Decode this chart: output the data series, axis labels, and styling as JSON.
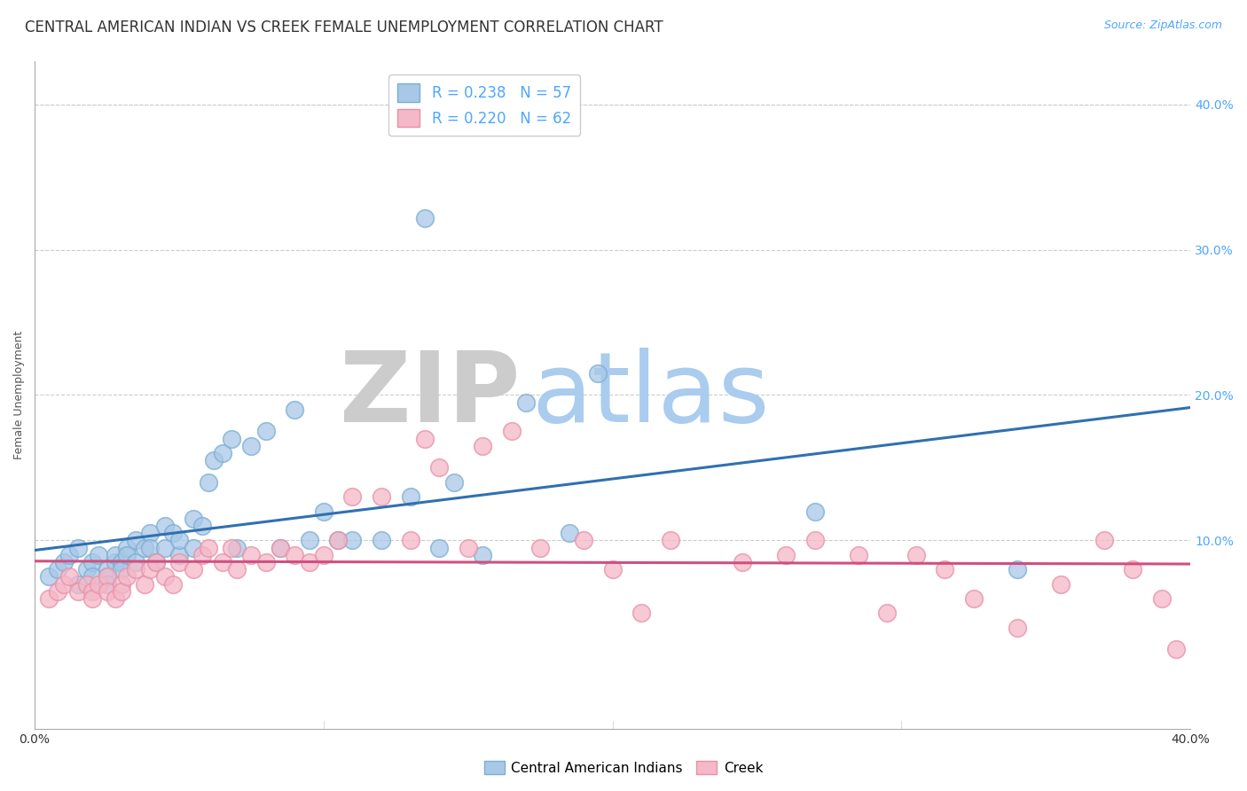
{
  "title": "CENTRAL AMERICAN INDIAN VS CREEK FEMALE UNEMPLOYMENT CORRELATION CHART",
  "source": "Source: ZipAtlas.com",
  "ylabel": "Female Unemployment",
  "right_yticks": [
    "40.0%",
    "30.0%",
    "20.0%",
    "10.0%"
  ],
  "right_ytick_vals": [
    0.4,
    0.3,
    0.2,
    0.1
  ],
  "legend_blue_r": "R = 0.238",
  "legend_blue_n": "N = 57",
  "legend_pink_r": "R = 0.220",
  "legend_pink_n": "N = 62",
  "legend_label_blue": "Central American Indians",
  "legend_label_pink": "Creek",
  "blue_color": "#a8c8e8",
  "pink_color": "#f4b8c8",
  "blue_edge": "#7aaed0",
  "pink_edge": "#e890a8",
  "trendline_blue": "#3070b0",
  "trendline_pink": "#d05080",
  "watermark_zip": "ZIP",
  "watermark_atlas": "atlas",
  "watermark_color_zip": "#cccccc",
  "watermark_color_atlas": "#aaccee",
  "blue_scatter_x": [
    0.005,
    0.008,
    0.01,
    0.012,
    0.015,
    0.015,
    0.018,
    0.02,
    0.02,
    0.022,
    0.025,
    0.025,
    0.025,
    0.028,
    0.028,
    0.03,
    0.03,
    0.032,
    0.032,
    0.035,
    0.035,
    0.038,
    0.04,
    0.04,
    0.042,
    0.045,
    0.045,
    0.048,
    0.05,
    0.05,
    0.055,
    0.055,
    0.058,
    0.06,
    0.062,
    0.065,
    0.068,
    0.07,
    0.075,
    0.08,
    0.085,
    0.09,
    0.095,
    0.1,
    0.105,
    0.11,
    0.12,
    0.13,
    0.135,
    0.14,
    0.145,
    0.155,
    0.17,
    0.185,
    0.195,
    0.27,
    0.34
  ],
  "blue_scatter_y": [
    0.075,
    0.08,
    0.085,
    0.09,
    0.07,
    0.095,
    0.08,
    0.085,
    0.075,
    0.09,
    0.08,
    0.075,
    0.07,
    0.085,
    0.09,
    0.085,
    0.08,
    0.095,
    0.09,
    0.1,
    0.085,
    0.095,
    0.105,
    0.095,
    0.085,
    0.11,
    0.095,
    0.105,
    0.09,
    0.1,
    0.115,
    0.095,
    0.11,
    0.14,
    0.155,
    0.16,
    0.17,
    0.095,
    0.165,
    0.175,
    0.095,
    0.19,
    0.1,
    0.12,
    0.1,
    0.1,
    0.1,
    0.13,
    0.322,
    0.095,
    0.14,
    0.09,
    0.195,
    0.105,
    0.215,
    0.12,
    0.08
  ],
  "pink_scatter_x": [
    0.005,
    0.008,
    0.01,
    0.012,
    0.015,
    0.018,
    0.02,
    0.02,
    0.022,
    0.025,
    0.025,
    0.028,
    0.03,
    0.03,
    0.032,
    0.035,
    0.038,
    0.04,
    0.042,
    0.045,
    0.048,
    0.05,
    0.055,
    0.058,
    0.06,
    0.065,
    0.068,
    0.07,
    0.075,
    0.08,
    0.085,
    0.09,
    0.095,
    0.1,
    0.105,
    0.11,
    0.12,
    0.13,
    0.135,
    0.14,
    0.15,
    0.155,
    0.165,
    0.175,
    0.19,
    0.2,
    0.21,
    0.22,
    0.245,
    0.26,
    0.27,
    0.285,
    0.295,
    0.305,
    0.315,
    0.325,
    0.34,
    0.355,
    0.37,
    0.38,
    0.39,
    0.395
  ],
  "pink_scatter_y": [
    0.06,
    0.065,
    0.07,
    0.075,
    0.065,
    0.07,
    0.065,
    0.06,
    0.07,
    0.075,
    0.065,
    0.06,
    0.07,
    0.065,
    0.075,
    0.08,
    0.07,
    0.08,
    0.085,
    0.075,
    0.07,
    0.085,
    0.08,
    0.09,
    0.095,
    0.085,
    0.095,
    0.08,
    0.09,
    0.085,
    0.095,
    0.09,
    0.085,
    0.09,
    0.1,
    0.13,
    0.13,
    0.1,
    0.17,
    0.15,
    0.095,
    0.165,
    0.175,
    0.095,
    0.1,
    0.08,
    0.05,
    0.1,
    0.085,
    0.09,
    0.1,
    0.09,
    0.05,
    0.09,
    0.08,
    0.06,
    0.04,
    0.07,
    0.1,
    0.08,
    0.06,
    0.025
  ],
  "xlim": [
    0.0,
    0.4
  ],
  "ylim": [
    -0.03,
    0.43
  ],
  "xtick_show": [
    0.0,
    0.4
  ],
  "xtick_labels_show": [
    "0.0%",
    "40.0%"
  ],
  "title_fontsize": 12,
  "source_fontsize": 9,
  "axis_label_fontsize": 9,
  "tick_fontsize": 10,
  "legend_fontsize": 12,
  "watermark_fontsize_zip": 80,
  "watermark_fontsize_atlas": 80,
  "background_color": "#ffffff",
  "grid_color": "#cccccc",
  "tick_color": "#4da6ff"
}
